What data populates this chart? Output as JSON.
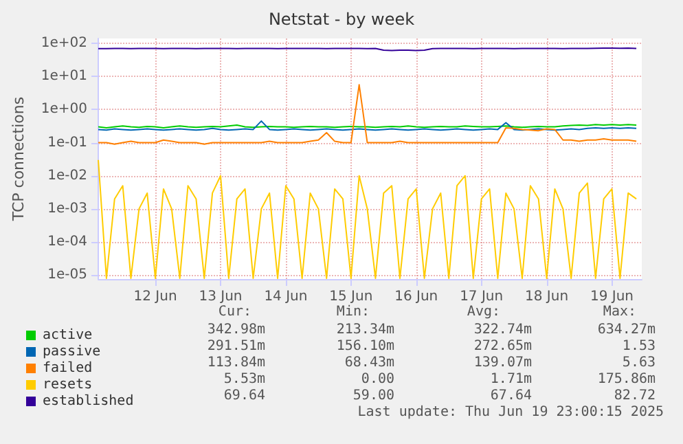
{
  "chart_data": {
    "type": "line",
    "title": "Netstat - by week",
    "ylabel": "TCP connections",
    "log": "y",
    "grid": true,
    "legend": "bottom",
    "marker": "none",
    "line_style": "solid",
    "ylim": [
      7.6e-06,
      140
    ],
    "yticks": [
      {
        "value": 1e-05,
        "label": "1e-05"
      },
      {
        "value": 0.0001,
        "label": "1e-04"
      },
      {
        "value": 0.001,
        "label": "1e-03"
      },
      {
        "value": 0.01,
        "label": "1e-02"
      },
      {
        "value": 0.1,
        "label": "1e-01"
      },
      {
        "value": 1,
        "label": "1e+00"
      },
      {
        "value": 10,
        "label": "1e+01"
      },
      {
        "value": 100,
        "label": "1e+02"
      }
    ],
    "xlim": [
      "2025-06-11T03:00",
      "2025-06-19T11:00"
    ],
    "xticks": [
      {
        "value": "2025-06-12",
        "label": "12 Jun"
      },
      {
        "value": "2025-06-13",
        "label": "13 Jun"
      },
      {
        "value": "2025-06-14",
        "label": "14 Jun"
      },
      {
        "value": "2025-06-15",
        "label": "15 Jun"
      },
      {
        "value": "2025-06-16",
        "label": "16 Jun"
      },
      {
        "value": "2025-06-17",
        "label": "17 Jun"
      },
      {
        "value": "2025-06-18",
        "label": "18 Jun"
      },
      {
        "value": "2025-06-19",
        "label": "19 Jun"
      }
    ],
    "x": [
      "2025-06-11T03:00",
      "2025-06-11T06:00",
      "2025-06-11T09:00",
      "2025-06-11T12:00",
      "2025-06-11T15:00",
      "2025-06-11T18:00",
      "2025-06-11T21:00",
      "2025-06-12T00:00",
      "2025-06-12T03:00",
      "2025-06-12T06:00",
      "2025-06-12T09:00",
      "2025-06-12T12:00",
      "2025-06-12T15:00",
      "2025-06-12T18:00",
      "2025-06-12T21:00",
      "2025-06-13T00:00",
      "2025-06-13T03:00",
      "2025-06-13T06:00",
      "2025-06-13T09:00",
      "2025-06-13T12:00",
      "2025-06-13T15:00",
      "2025-06-13T18:00",
      "2025-06-13T21:00",
      "2025-06-14T00:00",
      "2025-06-14T03:00",
      "2025-06-14T06:00",
      "2025-06-14T09:00",
      "2025-06-14T12:00",
      "2025-06-14T15:00",
      "2025-06-14T18:00",
      "2025-06-14T21:00",
      "2025-06-15T00:00",
      "2025-06-15T03:00",
      "2025-06-15T06:00",
      "2025-06-15T09:00",
      "2025-06-15T12:00",
      "2025-06-15T15:00",
      "2025-06-15T18:00",
      "2025-06-15T21:00",
      "2025-06-16T00:00",
      "2025-06-16T03:00",
      "2025-06-16T06:00",
      "2025-06-16T09:00",
      "2025-06-16T12:00",
      "2025-06-16T15:00",
      "2025-06-16T18:00",
      "2025-06-16T21:00",
      "2025-06-17T00:00",
      "2025-06-17T03:00",
      "2025-06-17T06:00",
      "2025-06-17T09:00",
      "2025-06-17T12:00",
      "2025-06-17T15:00",
      "2025-06-17T18:00",
      "2025-06-17T21:00",
      "2025-06-18T00:00",
      "2025-06-18T03:00",
      "2025-06-18T06:00",
      "2025-06-18T09:00",
      "2025-06-18T12:00",
      "2025-06-18T15:00",
      "2025-06-18T18:00",
      "2025-06-18T21:00",
      "2025-06-19T00:00",
      "2025-06-19T03:00",
      "2025-06-19T06:00",
      "2025-06-19T09:00"
    ],
    "series": [
      {
        "name": "active",
        "color": "#00cc00",
        "values": [
          0.3,
          0.28,
          0.3,
          0.32,
          0.3,
          0.29,
          0.31,
          0.3,
          0.28,
          0.3,
          0.32,
          0.3,
          0.29,
          0.3,
          0.31,
          0.3,
          0.32,
          0.34,
          0.3,
          0.29,
          0.3,
          0.31,
          0.3,
          0.3,
          0.29,
          0.3,
          0.31,
          0.3,
          0.3,
          0.29,
          0.3,
          0.31,
          0.3,
          0.3,
          0.29,
          0.3,
          0.31,
          0.3,
          0.32,
          0.3,
          0.29,
          0.3,
          0.31,
          0.3,
          0.3,
          0.32,
          0.31,
          0.3,
          0.3,
          0.31,
          0.32,
          0.3,
          0.29,
          0.3,
          0.31,
          0.3,
          0.3,
          0.32,
          0.33,
          0.34,
          0.33,
          0.35,
          0.34,
          0.35,
          0.34,
          0.35,
          0.34
        ]
      },
      {
        "name": "passive",
        "color": "#0066b3",
        "values": [
          0.25,
          0.24,
          0.26,
          0.25,
          0.24,
          0.25,
          0.26,
          0.25,
          0.24,
          0.25,
          0.26,
          0.25,
          0.24,
          0.25,
          0.27,
          0.25,
          0.24,
          0.25,
          0.26,
          0.25,
          0.45,
          0.25,
          0.24,
          0.25,
          0.26,
          0.25,
          0.24,
          0.25,
          0.26,
          0.25,
          0.24,
          0.25,
          0.26,
          0.25,
          0.24,
          0.25,
          0.26,
          0.25,
          0.24,
          0.25,
          0.26,
          0.25,
          0.24,
          0.25,
          0.26,
          0.25,
          0.24,
          0.25,
          0.26,
          0.25,
          0.4,
          0.25,
          0.24,
          0.25,
          0.26,
          0.25,
          0.24,
          0.25,
          0.26,
          0.25,
          0.27,
          0.28,
          0.27,
          0.28,
          0.27,
          0.28,
          0.27
        ]
      },
      {
        "name": "failed",
        "color": "#ff8000",
        "values": [
          0.1,
          0.1,
          0.09,
          0.1,
          0.11,
          0.1,
          0.1,
          0.1,
          0.12,
          0.11,
          0.1,
          0.1,
          0.1,
          0.09,
          0.1,
          0.1,
          0.1,
          0.1,
          0.1,
          0.1,
          0.1,
          0.11,
          0.1,
          0.1,
          0.1,
          0.1,
          0.11,
          0.12,
          0.2,
          0.11,
          0.1,
          0.1,
          5.6,
          0.1,
          0.1,
          0.1,
          0.1,
          0.11,
          0.1,
          0.1,
          0.1,
          0.1,
          0.1,
          0.1,
          0.1,
          0.1,
          0.1,
          0.1,
          0.1,
          0.1,
          0.28,
          0.27,
          0.25,
          0.24,
          0.23,
          0.26,
          0.25,
          0.12,
          0.12,
          0.11,
          0.12,
          0.12,
          0.13,
          0.12,
          0.12,
          0.12,
          0.11
        ]
      },
      {
        "name": "resets",
        "color": "#ffcc00",
        "values": [
          0.03,
          8e-06,
          0.002,
          0.005,
          8e-06,
          0.001,
          0.003,
          8e-06,
          0.004,
          0.001,
          8e-06,
          0.005,
          0.002,
          8e-06,
          0.003,
          0.01,
          8e-06,
          0.002,
          0.004,
          8e-06,
          0.001,
          0.003,
          8e-06,
          0.005,
          0.002,
          8e-06,
          0.003,
          0.001,
          8e-06,
          0.004,
          0.002,
          8e-06,
          0.01,
          0.001,
          8e-06,
          0.003,
          0.005,
          8e-06,
          0.002,
          0.004,
          8e-06,
          0.001,
          0.003,
          8e-06,
          0.005,
          0.01,
          8e-06,
          0.002,
          0.004,
          8e-06,
          0.003,
          0.001,
          8e-06,
          0.005,
          0.002,
          8e-06,
          0.004,
          0.001,
          8e-06,
          0.003,
          0.006,
          8e-06,
          0.002,
          0.004,
          8e-06,
          0.003,
          0.002
        ]
      },
      {
        "name": "established",
        "color": "#330099",
        "values": [
          69,
          69,
          70,
          70,
          69,
          70,
          70,
          70,
          69,
          70,
          70,
          70,
          69,
          70,
          70,
          70,
          70,
          69,
          70,
          70,
          70,
          70,
          69,
          70,
          70,
          70,
          70,
          70,
          69,
          70,
          70,
          70,
          70,
          69,
          70,
          62,
          61,
          62,
          62,
          61,
          62,
          69,
          70,
          70,
          70,
          70,
          69,
          70,
          70,
          70,
          70,
          69,
          70,
          70,
          70,
          70,
          70,
          69,
          70,
          70,
          70,
          71,
          72,
          72,
          71,
          72,
          70
        ]
      }
    ],
    "annotations": [
      "Cur:",
      "Min:",
      "Avg:",
      "Max:",
      "342.98m",
      "213.34m",
      "322.74m",
      "634.27m",
      "291.51m",
      "156.10m",
      "272.65m",
      "1.53",
      "113.84m",
      "68.43m",
      "139.07m",
      "5.63",
      "5.53m",
      "0.00",
      "1.71m",
      "175.86m",
      "69.64",
      "59.00",
      "67.64",
      "82.72",
      "Last update: Thu Jun 19 23:00:15 2025"
    ]
  }
}
